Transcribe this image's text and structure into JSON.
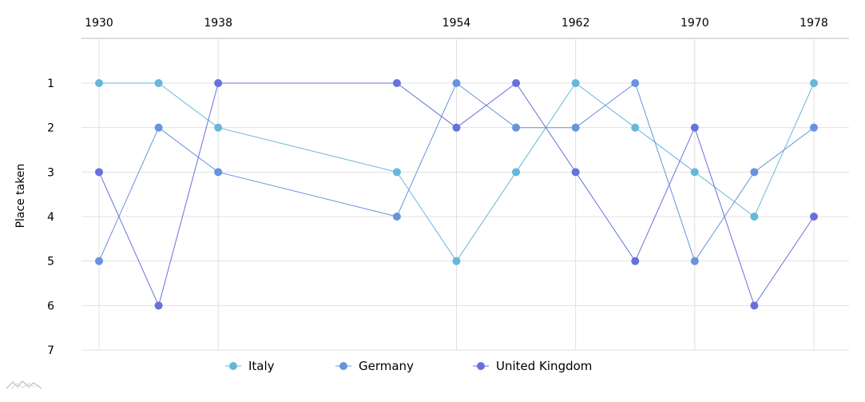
{
  "chart_data": {
    "type": "line",
    "title": "",
    "ylabel": "Place taken",
    "xlabel": "",
    "x_axis_position": "top",
    "y_axis_inverted": true,
    "ylim": [
      1,
      7
    ],
    "xlim": [
      1930,
      1978
    ],
    "x_ticks": [
      "1930",
      "1938",
      "1954",
      "1962",
      "1970",
      "1978"
    ],
    "y_ticks": [
      "1",
      "2",
      "3",
      "4",
      "5",
      "6",
      "7"
    ],
    "x": [
      1930,
      1934,
      1938,
      1950,
      1954,
      1958,
      1962,
      1966,
      1970,
      1974,
      1978
    ],
    "grid": true,
    "legend_position": "bottom",
    "series": [
      {
        "name": "Italy",
        "color": "#67b7dc",
        "values": [
          1,
          1,
          2,
          3,
          5,
          3,
          1,
          2,
          3,
          4,
          1
        ]
      },
      {
        "name": "Germany",
        "color": "#6794dc",
        "values": [
          5,
          2,
          3,
          4,
          1,
          2,
          2,
          1,
          5,
          3,
          2
        ]
      },
      {
        "name": "United Kingdom",
        "color": "#6771dc",
        "values": [
          3,
          6,
          1,
          1,
          2,
          1,
          3,
          5,
          2,
          6,
          4
        ]
      }
    ]
  },
  "logo_icon": "amcharts-logo-icon"
}
